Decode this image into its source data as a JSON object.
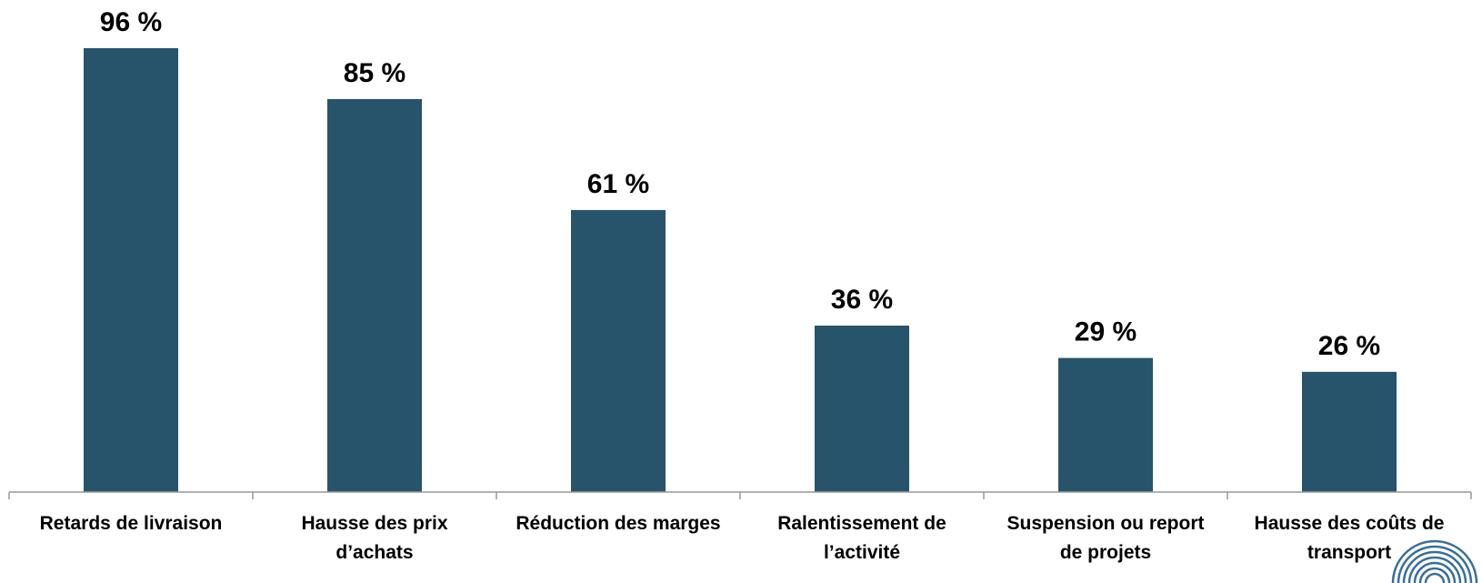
{
  "chart_data": {
    "type": "bar",
    "categories": [
      [
        "Retards de livraison"
      ],
      [
        "Hausse des prix",
        "d’achats"
      ],
      [
        "Réduction des marges"
      ],
      [
        "Ralentissement de",
        "l’activité"
      ],
      [
        "Suspension ou report",
        "de projets"
      ],
      [
        "Hausse des coûts de",
        "transport"
      ]
    ],
    "values": [
      96,
      85,
      61,
      36,
      29,
      26
    ],
    "data_labels": [
      "96 %",
      "85 %",
      "61 %",
      "36 %",
      "29 %",
      "26 %"
    ],
    "ylim": [
      0,
      100
    ],
    "grid": false,
    "legend": "none",
    "bar_color": "#27546b",
    "axis_color": "#999999",
    "logo_color": "#3a6f9a"
  }
}
